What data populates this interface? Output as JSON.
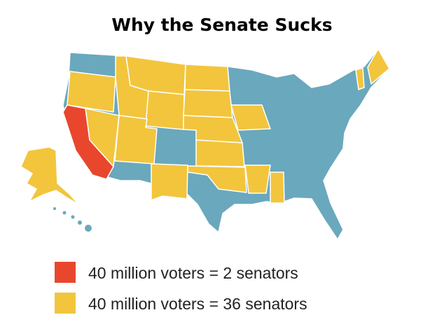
{
  "title": "Why the Senate Sucks",
  "legend": [
    {
      "label": "40 million voters = 2 senators",
      "color": "#e8472e"
    },
    {
      "label": "40 million voters = 36 senators",
      "color": "#f2c53d"
    }
  ]
}
